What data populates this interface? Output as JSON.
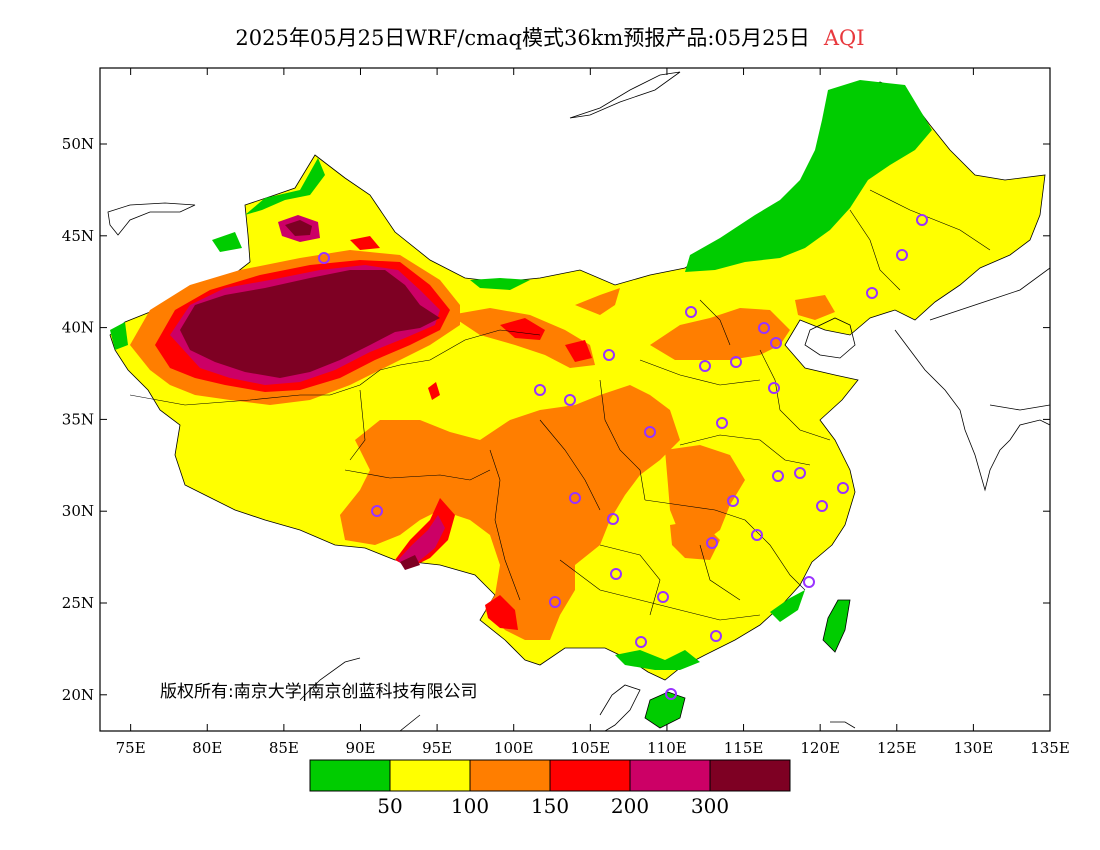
{
  "title": {
    "main": "2025年05月25日WRF/cmaq模式36km预报产品:05月25日",
    "highlight": "AQI",
    "highlight_color": "#e8383d"
  },
  "copyright": "版权所有:南京大学|南京创蓝科技有限公司",
  "axes": {
    "lon_labels": [
      "75E",
      "80E",
      "85E",
      "90E",
      "95E",
      "100E",
      "105E",
      "110E",
      "115E",
      "120E",
      "125E",
      "130E",
      "135E"
    ],
    "lat_labels": [
      "50N",
      "45N",
      "40N",
      "35N",
      "30N",
      "25N",
      "20N"
    ]
  },
  "colorbar": {
    "colors": [
      "#00cc00",
      "#ffff00",
      "#ff7e00",
      "#ff0000",
      "#cc0066",
      "#7e0023"
    ],
    "labels": [
      "50",
      "100",
      "150",
      "200",
      "300"
    ]
  },
  "station_marker_color": "#9933ff"
}
